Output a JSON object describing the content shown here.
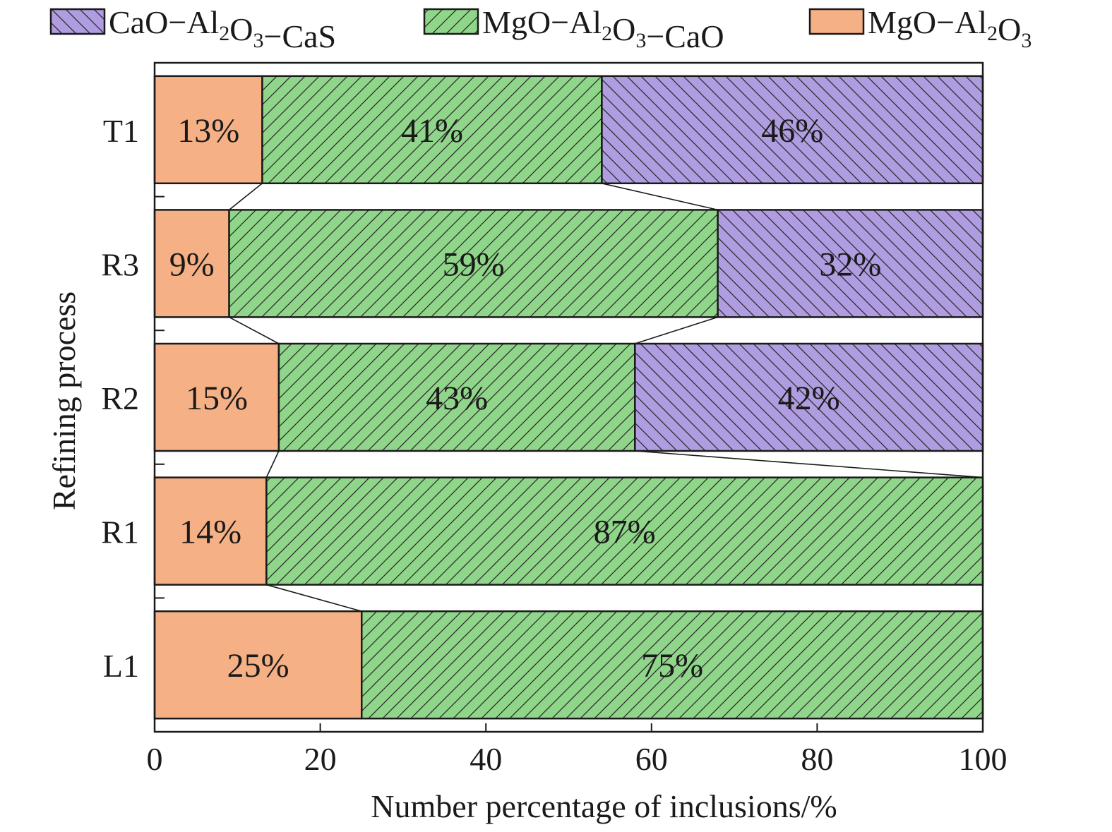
{
  "chart_data": {
    "type": "bar",
    "orientation": "horizontal",
    "stacked": true,
    "categories": [
      "L1",
      "R1",
      "R2",
      "R3",
      "T1"
    ],
    "series": [
      {
        "name": "MgO−Al₂O₃",
        "legend_main": "MgO−Al",
        "legend_parts": [
          "MgO−Al",
          "2",
          "O",
          "3",
          ""
        ],
        "values": [
          25,
          13.5,
          15,
          9,
          13
        ],
        "labels": [
          "25%",
          "14%",
          "15%",
          "9%",
          "13%"
        ],
        "color": "#f5b085",
        "pattern": "none"
      },
      {
        "name": "MgO−Al₂O₃−CaO",
        "legend_parts": [
          "MgO−Al",
          "2",
          "O",
          "3",
          "−CaO"
        ],
        "values": [
          75,
          86.5,
          43,
          59,
          41
        ],
        "labels": [
          "75%",
          "87%",
          "43%",
          "59%",
          "41%"
        ],
        "color": "#90d68a",
        "pattern": "forward"
      },
      {
        "name": "CaO−Al₂O₃−CaS",
        "legend_parts": [
          "CaO−Al",
          "2",
          "O",
          "3",
          "−CaS"
        ],
        "values": [
          0,
          0,
          42,
          32,
          46
        ],
        "labels": [
          "",
          "",
          "42%",
          "32%",
          "46%"
        ],
        "color": "#b09ce0",
        "pattern": "back"
      }
    ],
    "legend_order": [
      2,
      1,
      0
    ],
    "legend_position": "top",
    "xlabel": "Number percentage of inclusions/%",
    "ylabel": "Refining process",
    "xlim": [
      0,
      100
    ],
    "xticks": [
      0,
      20,
      40,
      60,
      80,
      100
    ],
    "xtick_labels": [
      "0",
      "20",
      "40",
      "60",
      "80",
      "100"
    ],
    "grid": false,
    "connector_lines": true
  }
}
